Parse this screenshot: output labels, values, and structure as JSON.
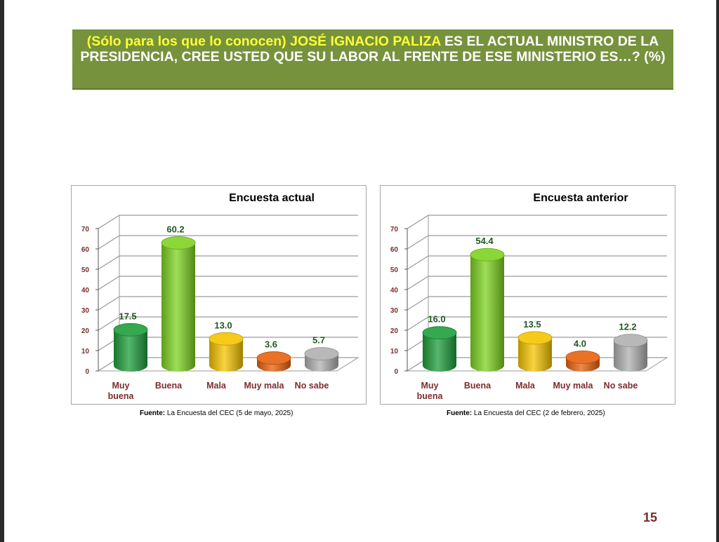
{
  "header": {
    "part1": "(Sólo para los que lo conocen)",
    "part2": "JOSÉ IGNACIO PALIZA",
    "part3": "ES EL ACTUAL MINISTRO DE LA PRESIDENCIA, CREE USTED QUE SU LABOR AL FRENTE DE ESE MINISTERIO ES…? (%)"
  },
  "colors": {
    "header_bg": "#76923c",
    "header_highlight": "#ffff33",
    "value_label": "#1f5a1f",
    "category_label": "#7b2c2c"
  },
  "chart_data": [
    {
      "type": "bar",
      "title": "Encuesta actual",
      "categories": [
        [
          "Muy",
          "buena"
        ],
        [
          "Buena"
        ],
        [
          "Mala"
        ],
        [
          "Muy mala"
        ],
        [
          "No sabe"
        ]
      ],
      "values": [
        17.5,
        60.2,
        13.0,
        3.6,
        5.7
      ],
      "value_labels": [
        "17.5",
        "60.2",
        "13.0",
        "3.6",
        "5.7"
      ],
      "ylim": [
        0,
        70
      ],
      "yticks": [
        "0",
        "10",
        "20",
        "30",
        "40",
        "50",
        "60",
        "70"
      ],
      "bar_colors": [
        "#1e9e3c",
        "#7ed321",
        "#f5c400",
        "#e8620f",
        "#b0b0b0"
      ],
      "grid": true
    },
    {
      "type": "bar",
      "title": "Encuesta anterior",
      "categories": [
        [
          "Muy",
          "buena"
        ],
        [
          "Buena"
        ],
        [
          "Mala"
        ],
        [
          "Muy mala"
        ],
        [
          "No sabe"
        ]
      ],
      "values": [
        16.0,
        54.4,
        13.5,
        4.0,
        12.2
      ],
      "value_labels": [
        "16.0",
        "54.4",
        "13.5",
        "4.0",
        "12.2"
      ],
      "ylim": [
        0,
        70
      ],
      "yticks": [
        "0",
        "10",
        "20",
        "30",
        "40",
        "50",
        "60",
        "70"
      ],
      "bar_colors": [
        "#1e9e3c",
        "#7ed321",
        "#f5c400",
        "#e8620f",
        "#b0b0b0"
      ],
      "grid": true
    }
  ],
  "sources": [
    {
      "label": "Fuente:",
      "text": "La Encuesta del CEC (5 de mayo, 2025)"
    },
    {
      "label": "Fuente:",
      "text": "La Encuesta del CEC (2 de febrero, 2025)"
    }
  ],
  "page_number": "15"
}
